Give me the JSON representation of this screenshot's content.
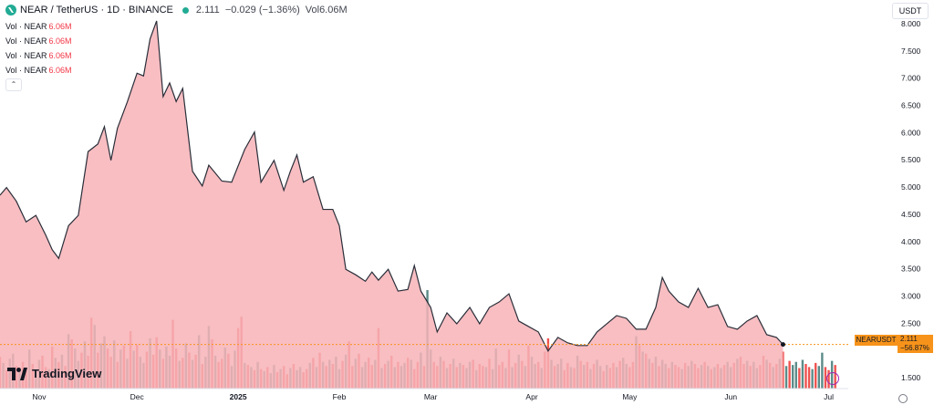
{
  "header": {
    "symbol": "NEAR / TetherUS · 1D · BINANCE",
    "last": "2.111",
    "change": "−0.029 (−1.36%)",
    "vol_label": "Vol",
    "vol_value": "6.06M"
  },
  "indicators": [
    {
      "label": "Vol · NEAR",
      "value": "6.06M"
    },
    {
      "label": "Vol · NEAR",
      "value": "6.06M"
    },
    {
      "label": "Vol · NEAR",
      "value": "6.06M"
    },
    {
      "label": "Vol · NEAR",
      "value": "6.06M"
    }
  ],
  "currency_button": "USDT",
  "price_tag": {
    "symbol": "NEARUSDT",
    "price": "2.111",
    "change": "−56.87%"
  },
  "logo_text": "TradingView",
  "colors": {
    "line": "#2a2e39",
    "area": "#f7b3b7",
    "vol_up": "#5b8c89",
    "vol_down": "#ef5350",
    "tag": "#f7931a",
    "axis_text": "#131722"
  },
  "chart_data": {
    "type": "area",
    "title": "NEAR / TetherUS · 1D · BINANCE",
    "xlabel": "",
    "ylabel": "",
    "y_axis": {
      "ticks": [
        "1.500",
        "2.000",
        "2.500",
        "3.000",
        "3.500",
        "4.000",
        "4.500",
        "5.000",
        "5.500",
        "6.000",
        "6.500",
        "7.000",
        "7.500",
        "8.000"
      ],
      "ylim": [
        1.3,
        8.3
      ],
      "side": "right"
    },
    "x_axis": {
      "ticks": [
        "Nov",
        "Dec",
        "2025",
        "Feb",
        "Mar",
        "Apr",
        "May",
        "Jun",
        "Jul"
      ],
      "tick_dates": [
        "2024-11-01",
        "2024-12-01",
        "2025-01-01",
        "2025-02-01",
        "2025-03-01",
        "2025-04-01",
        "2025-05-01",
        "2025-06-01",
        "2025-07-01"
      ],
      "xlim": [
        "2024-10-20",
        "2025-07-07"
      ]
    },
    "grid": false,
    "series": [
      {
        "name": "NEARUSDT",
        "points": [
          [
            "2024-10-20",
            4.85
          ],
          [
            "2024-10-22",
            4.99
          ],
          [
            "2024-10-25",
            4.74
          ],
          [
            "2024-10-28",
            4.36
          ],
          [
            "2024-10-31",
            4.48
          ],
          [
            "2024-11-03",
            4.12
          ],
          [
            "2024-11-05",
            3.85
          ],
          [
            "2024-11-07",
            3.69
          ],
          [
            "2024-11-10",
            4.29
          ],
          [
            "2024-11-13",
            4.48
          ],
          [
            "2024-11-16",
            5.65
          ],
          [
            "2024-11-19",
            5.79
          ],
          [
            "2024-11-21",
            6.11
          ],
          [
            "2024-11-23",
            5.49
          ],
          [
            "2024-11-25",
            6.08
          ],
          [
            "2024-11-28",
            6.56
          ],
          [
            "2024-12-01",
            7.09
          ],
          [
            "2024-12-03",
            7.04
          ],
          [
            "2024-12-05",
            7.72
          ],
          [
            "2024-12-07",
            8.05
          ],
          [
            "2024-12-09",
            6.66
          ],
          [
            "2024-12-11",
            6.91
          ],
          [
            "2024-12-13",
            6.57
          ],
          [
            "2024-12-15",
            6.81
          ],
          [
            "2024-12-18",
            5.29
          ],
          [
            "2024-12-21",
            5.02
          ],
          [
            "2024-12-23",
            5.4
          ],
          [
            "2024-12-27",
            5.11
          ],
          [
            "2024-12-30",
            5.09
          ],
          [
            "2025-01-03",
            5.69
          ],
          [
            "2025-01-06",
            6.01
          ],
          [
            "2025-01-08",
            5.09
          ],
          [
            "2025-01-12",
            5.49
          ],
          [
            "2025-01-15",
            4.94
          ],
          [
            "2025-01-17",
            5.29
          ],
          [
            "2025-01-19",
            5.59
          ],
          [
            "2025-01-21",
            5.09
          ],
          [
            "2025-01-24",
            5.19
          ],
          [
            "2025-01-27",
            4.59
          ],
          [
            "2025-01-30",
            4.59
          ],
          [
            "2025-02-01",
            4.29
          ],
          [
            "2025-02-03",
            3.49
          ],
          [
            "2025-02-06",
            3.39
          ],
          [
            "2025-02-09",
            3.27
          ],
          [
            "2025-02-11",
            3.44
          ],
          [
            "2025-02-13",
            3.29
          ],
          [
            "2025-02-16",
            3.49
          ],
          [
            "2025-02-19",
            3.09
          ],
          [
            "2025-02-22",
            3.12
          ],
          [
            "2025-02-24",
            3.56
          ],
          [
            "2025-02-26",
            3.09
          ],
          [
            "2025-03-01",
            2.79
          ],
          [
            "2025-03-03",
            2.34
          ],
          [
            "2025-03-06",
            2.69
          ],
          [
            "2025-03-09",
            2.49
          ],
          [
            "2025-03-13",
            2.79
          ],
          [
            "2025-03-16",
            2.49
          ],
          [
            "2025-03-19",
            2.79
          ],
          [
            "2025-03-22",
            2.89
          ],
          [
            "2025-03-25",
            3.04
          ],
          [
            "2025-03-28",
            2.54
          ],
          [
            "2025-03-31",
            2.44
          ],
          [
            "2025-04-03",
            2.34
          ],
          [
            "2025-04-06",
            1.99
          ],
          [
            "2025-04-09",
            2.24
          ],
          [
            "2025-04-12",
            2.14
          ],
          [
            "2025-04-15",
            2.09
          ],
          [
            "2025-04-18",
            2.09
          ],
          [
            "2025-04-21",
            2.34
          ],
          [
            "2025-04-24",
            2.49
          ],
          [
            "2025-04-27",
            2.64
          ],
          [
            "2025-04-30",
            2.59
          ],
          [
            "2025-05-03",
            2.39
          ],
          [
            "2025-05-06",
            2.39
          ],
          [
            "2025-05-09",
            2.79
          ],
          [
            "2025-05-11",
            3.34
          ],
          [
            "2025-05-13",
            3.09
          ],
          [
            "2025-05-16",
            2.89
          ],
          [
            "2025-05-19",
            2.79
          ],
          [
            "2025-05-22",
            3.14
          ],
          [
            "2025-05-25",
            2.79
          ],
          [
            "2025-05-28",
            2.84
          ],
          [
            "2025-05-31",
            2.44
          ],
          [
            "2025-06-03",
            2.39
          ],
          [
            "2025-06-06",
            2.54
          ],
          [
            "2025-06-09",
            2.64
          ],
          [
            "2025-06-12",
            2.29
          ],
          [
            "2025-06-15",
            2.24
          ],
          [
            "2025-06-17",
            2.11
          ]
        ]
      }
    ],
    "volume": {
      "name": "Vol · NEAR",
      "start": "2024-10-20",
      "step_days": 1,
      "values": [
        3.1,
        2.5,
        1.8,
        2.9,
        3.4,
        2.2,
        1.9,
        2.6,
        2.0,
        3.8,
        2.4,
        1.7,
        2.8,
        3.2,
        2.1,
        1.9,
        4.1,
        3.0,
        2.6,
        3.3,
        2.2,
        5.3,
        4.8,
        3.9,
        2.7,
        3.5,
        4.6,
        3.2,
        6.9,
        6.2,
        3.5,
        4.4,
        5.1,
        3.9,
        3.1,
        4.7,
        2.6,
        3.8,
        4.2,
        2.9,
        5.6,
        3.7,
        4.3,
        3.1,
        2.5,
        3.6,
        4.9,
        3.3,
        5.0,
        3.8,
        2.9,
        4.1,
        3.2,
        6.7,
        3.9,
        2.7,
        3.0,
        4.4,
        3.5,
        2.8,
        3.3,
        5.2,
        2.4,
        3.1,
        6.1,
        4.8,
        3.2,
        2.6,
        2.9,
        4.0,
        3.4,
        2.2,
        3.7,
        5.9,
        7.0,
        2.5,
        2.3,
        2.1,
        1.8,
        2.6,
        1.9,
        1.7,
        2.1,
        1.5,
        2.3,
        1.6,
        1.9,
        2.2,
        1.4,
        2.0,
        2.4,
        1.8,
        2.1,
        1.6,
        1.9,
        2.5,
        3.0,
        2.1,
        3.5,
        2.6,
        2.2,
        2.8,
        2.4,
        3.1,
        1.9,
        2.7,
        3.3,
        4.6,
        2.2,
        2.9,
        3.4,
        2.1,
        2.6,
        3.0,
        2.3,
        2.8,
        5.9,
        2.0,
        2.4,
        2.7,
        3.2,
        2.1,
        2.6,
        2.2,
        2.5,
        3.0,
        2.8,
        1.9,
        2.6,
        3.5,
        2.2,
        9.6,
        3.8,
        2.6,
        2.2,
        3.1,
        2.7,
        2.0,
        2.4,
        2.9,
        2.1,
        2.5,
        2.3,
        2.0,
        2.6,
        2.8,
        1.8,
        2.4,
        2.2,
        2.1,
        2.9,
        1.9,
        3.9,
        2.3,
        2.6,
        2.0,
        3.8,
        2.1,
        2.5,
        3.3,
        2.7,
        2.2,
        4.2,
        3.1,
        2.4,
        2.6,
        2.0,
        3.6,
        4.9,
        2.8,
        2.2,
        2.4,
        2.9,
        1.8,
        2.5,
        2.1,
        2.0,
        3.2,
        2.7,
        2.3,
        2.6,
        1.9,
        2.4,
        2.8,
        2.2,
        1.7,
        2.3,
        2.0,
        2.5,
        2.1,
        2.7,
        3.0,
        2.4,
        2.1,
        2.6,
        5.1,
        4.2,
        3.6,
        3.4,
        2.9,
        2.5,
        3.1,
        2.2,
        2.8,
        2.4,
        2.0,
        2.6,
        2.3,
        2.1,
        1.9,
        2.5,
        2.2,
        2.7,
        2.4,
        2.0,
        2.3,
        2.6,
        2.2,
        1.9,
        2.1,
        2.4,
        2.0,
        2.3,
        2.6,
        2.1,
        2.5,
        2.9,
        3.1,
        2.4,
        2.7,
        2.2,
        2.6,
        2.0,
        2.3,
        3.2,
        2.8,
        2.5,
        2.1,
        2.4,
        2.9,
        3.6,
        2.2,
        2.7,
        2.3,
        2.6,
        2.0,
        2.8,
        2.4,
        2.1,
        1.9,
        2.5,
        2.2,
        3.5,
        2.1,
        1.8,
        2.7,
        2.3
      ],
      "up_pattern": [
        0,
        1,
        0,
        1,
        1,
        0,
        1,
        0,
        0,
        1,
        0,
        1,
        1,
        0,
        0,
        1,
        0,
        1,
        0,
        1
      ]
    }
  }
}
